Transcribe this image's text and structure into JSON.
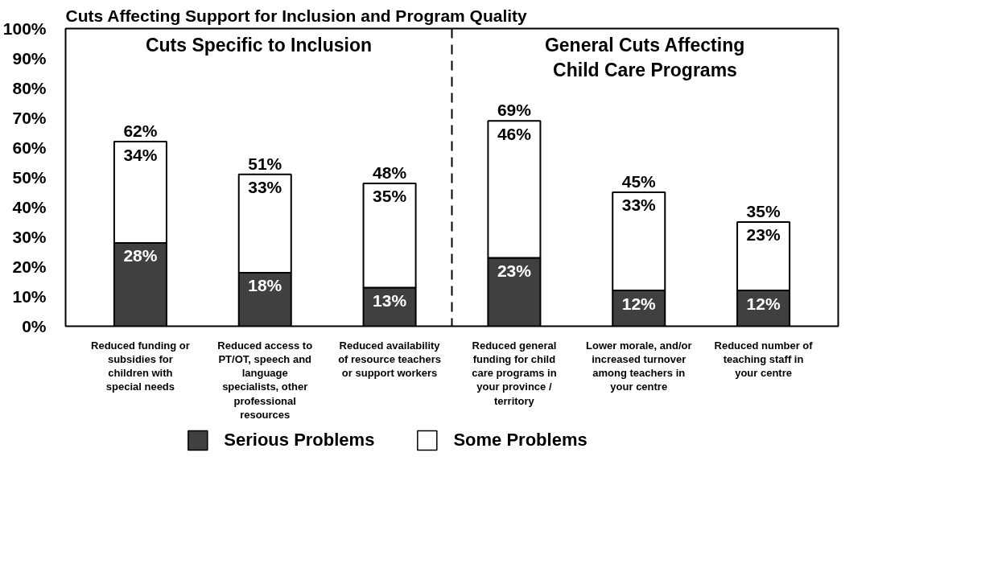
{
  "chart_data": {
    "type": "bar",
    "title": "Cuts Affecting Support for Inclusion and Program Quality",
    "categories": [
      "Reduced funding or subsidies for children with special needs",
      "Reduced access to PT/OT, speech and language specialists, other professional resources",
      "Reduced availability of resource teachers or support workers",
      "Reduced general funding for child care programs in your province / territory",
      "Lower morale, and/or increased turnover among teachers in your centre",
      "Reduced number of teaching staff in your centre"
    ],
    "stacked": true,
    "series": [
      {
        "name": "Serious Problems",
        "color": "#404040",
        "values": [
          28,
          18,
          13,
          23,
          12,
          12
        ],
        "value_labels": [
          "28%",
          "18%",
          "13%",
          "23%",
          "12%",
          "12%"
        ]
      },
      {
        "name": "Some Problems",
        "color": "#ffffff",
        "values": [
          34,
          33,
          35,
          46,
          33,
          23
        ],
        "value_labels": [
          "34%",
          "33%",
          "35%",
          "46%",
          "33%",
          "23%"
        ]
      }
    ],
    "totals": [
      "62%",
      "51%",
      "48%",
      "69%",
      "45%",
      "35%"
    ],
    "ylim": [
      0,
      100
    ],
    "yticks": [
      {
        "value": 0,
        "label": "0%"
      },
      {
        "value": 10,
        "label": "10%"
      },
      {
        "value": 20,
        "label": "20%"
      },
      {
        "value": 30,
        "label": "30%"
      },
      {
        "value": 40,
        "label": "40%"
      },
      {
        "value": 50,
        "label": "50%"
      },
      {
        "value": 60,
        "label": "60%"
      },
      {
        "value": 70,
        "label": "70%"
      },
      {
        "value": 80,
        "label": "80%"
      },
      {
        "value": 90,
        "label": "90%"
      },
      {
        "value": 100,
        "label": "100%"
      }
    ],
    "annotations": [
      "Cuts Specific to Inclusion",
      "General Cuts Affecting Child Care Programs"
    ],
    "grid": false,
    "legend": "bottom"
  }
}
